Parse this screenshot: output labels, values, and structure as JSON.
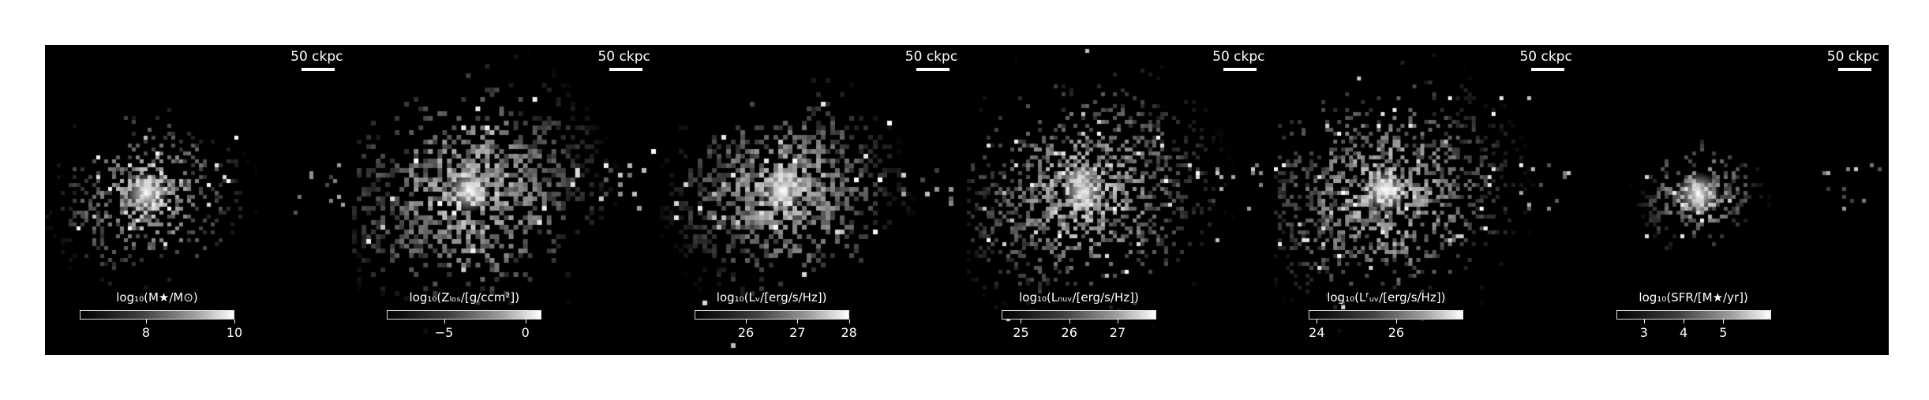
{
  "panels": [
    {
      "scale_label": "50 ckpc",
      "quantity": "stellar-mass",
      "cbar_label": "log₁₀(M★/M⊙)",
      "cbar_min": 6.5,
      "cbar_max": 10,
      "ticks": [
        {
          "value": 8,
          "label": "8"
        },
        {
          "value": 10,
          "label": "10"
        }
      ]
    },
    {
      "scale_label": "50 ckpc",
      "quantity": "metallicity",
      "cbar_label": "log₁₀(Zₗₒₛ/[g/ccm²])",
      "cbar_min": -8.5,
      "cbar_max": 1,
      "ticks": [
        {
          "value": -5,
          "label": "−5"
        },
        {
          "value": 0,
          "label": "0"
        }
      ]
    },
    {
      "scale_label": "50 ckpc",
      "quantity": "v-luminosity",
      "cbar_label": "log₁₀(Lᵥ/[erg/s/Hz])",
      "cbar_min": 25,
      "cbar_max": 28,
      "ticks": [
        {
          "value": 26,
          "label": "26"
        },
        {
          "value": 27,
          "label": "27"
        },
        {
          "value": 28,
          "label": "28"
        }
      ]
    },
    {
      "scale_label": "50 ckpc",
      "quantity": "nuv-luminosity",
      "cbar_label": "log₁₀(Lₙᵤᵥ/[erg/s/Hz])",
      "cbar_min": 24.6,
      "cbar_max": 27.8,
      "ticks": [
        {
          "value": 25,
          "label": "25"
        },
        {
          "value": 26,
          "label": "26"
        },
        {
          "value": 27,
          "label": "27"
        }
      ]
    },
    {
      "scale_label": "50 ckpc",
      "quantity": "fuv-luminosity",
      "cbar_label": "log₁₀(Lᶠᵤᵥ/[erg/s/Hz])",
      "cbar_min": 23.8,
      "cbar_max": 27.7,
      "ticks": [
        {
          "value": 24,
          "label": "24"
        },
        {
          "value": 26,
          "label": "26"
        }
      ]
    },
    {
      "scale_label": "50 ckpc",
      "quantity": "star-formation-rate",
      "cbar_label": "log₁₀(SFR/[M★/yr])",
      "cbar_min": 2.3,
      "cbar_max": 6.2,
      "ticks": [
        {
          "value": 3,
          "label": "3"
        },
        {
          "value": 4,
          "label": "4"
        },
        {
          "value": 5,
          "label": "5"
        }
      ]
    }
  ]
}
